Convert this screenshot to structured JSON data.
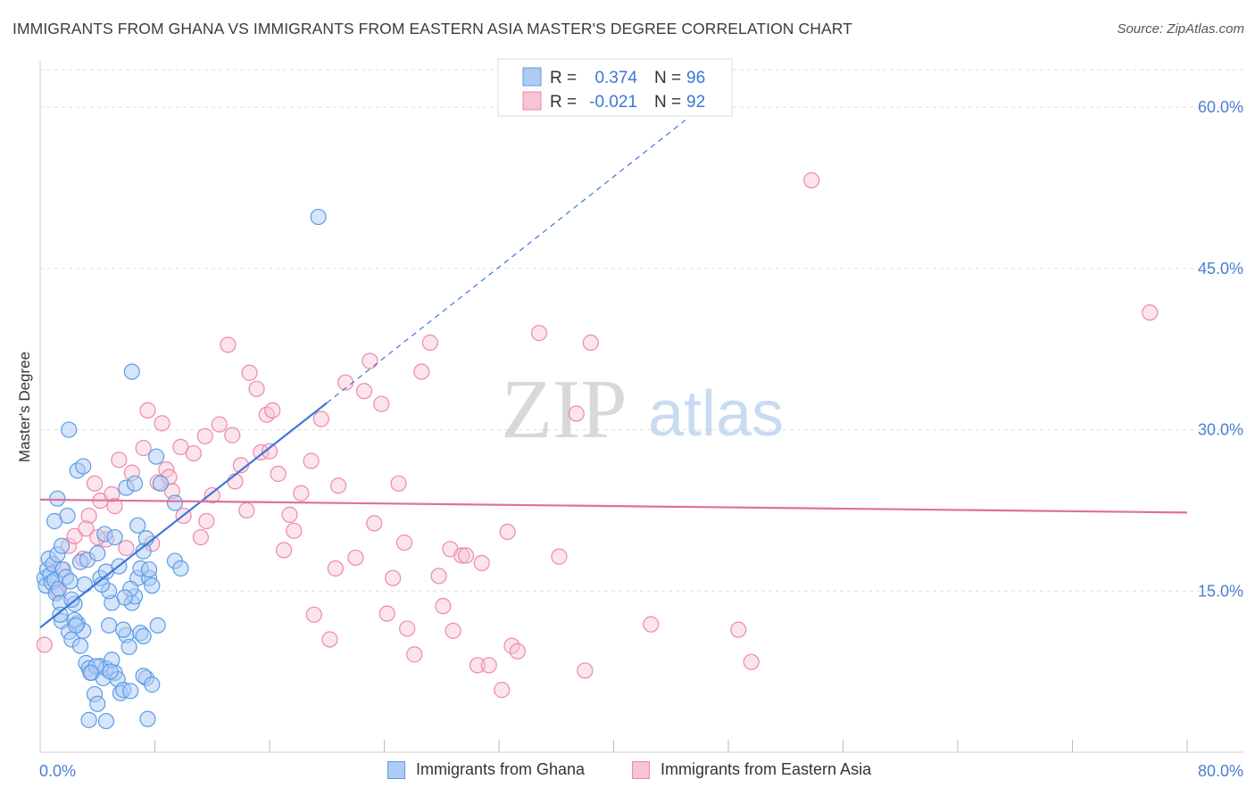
{
  "title": "IMMIGRANTS FROM GHANA VS IMMIGRANTS FROM EASTERN ASIA MASTER'S DEGREE CORRELATION CHART",
  "source": "Source: ZipAtlas.com",
  "watermark": {
    "zip": "ZIP",
    "atlas": "atlas"
  },
  "colors": {
    "blue": "#5b9ce6",
    "blue_fill": "#aecbf3",
    "blue_line": "#3b78d8",
    "pink": "#ee89a9",
    "pink_fill": "#f6c4d4",
    "pink_line": "#e0709a",
    "axis_text": "#4a7fd0",
    "grid": "#dddddd"
  },
  "legend": {
    "r_label": "R =",
    "n_label": "N =",
    "blue": {
      "r": "0.374",
      "n": "96"
    },
    "pink": {
      "r": "-0.021",
      "n": "92"
    }
  },
  "chart_data": {
    "type": "scatter",
    "ylabel": "Master's Degree",
    "x_axis": {
      "min": 0,
      "max": 80,
      "min_label": "0.0%",
      "max_label": "80.0%"
    },
    "y_axis": {
      "min": 0,
      "max": 63.5,
      "ticks": [
        15,
        30,
        45,
        60
      ],
      "tick_labels": [
        "15.0%",
        "30.0%",
        "45.0%",
        "60.0%"
      ]
    },
    "series": [
      {
        "name": "Immigrants from Ghana",
        "color": "#5b9ce6",
        "trend": {
          "x0": 0,
          "y0": 11.6,
          "x1": 20,
          "y1": 32.5,
          "dash_to_x": 45,
          "dash_to_y": 58.8
        },
        "points": [
          [
            0.3,
            16.2
          ],
          [
            0.4,
            15.5
          ],
          [
            0.5,
            17.0
          ],
          [
            0.6,
            18.0
          ],
          [
            0.7,
            16.5
          ],
          [
            0.8,
            15.8
          ],
          [
            0.9,
            17.5
          ],
          [
            1.0,
            16.0
          ],
          [
            1.1,
            14.8
          ],
          [
            1.2,
            18.4
          ],
          [
            1.3,
            15.2
          ],
          [
            1.4,
            13.9
          ],
          [
            1.5,
            12.2
          ],
          [
            1.6,
            17.0
          ],
          [
            1.8,
            16.3
          ],
          [
            2.0,
            11.2
          ],
          [
            2.2,
            10.5
          ],
          [
            2.4,
            13.8
          ],
          [
            2.6,
            12.0
          ],
          [
            2.8,
            9.9
          ],
          [
            3.0,
            11.3
          ],
          [
            3.2,
            8.3
          ],
          [
            3.4,
            7.8
          ],
          [
            3.6,
            7.4
          ],
          [
            3.8,
            5.4
          ],
          [
            4.0,
            4.5
          ],
          [
            4.2,
            8.0
          ],
          [
            4.4,
            6.9
          ],
          [
            4.6,
            7.8
          ],
          [
            4.8,
            11.8
          ],
          [
            5.0,
            13.9
          ],
          [
            5.2,
            7.4
          ],
          [
            5.4,
            6.8
          ],
          [
            5.6,
            5.5
          ],
          [
            5.8,
            5.8
          ],
          [
            6.0,
            10.9
          ],
          [
            6.2,
            9.8
          ],
          [
            6.4,
            13.9
          ],
          [
            6.6,
            14.5
          ],
          [
            6.8,
            16.2
          ],
          [
            7.0,
            11.1
          ],
          [
            7.2,
            10.8
          ],
          [
            7.4,
            6.9
          ],
          [
            7.6,
            16.2
          ],
          [
            7.8,
            15.5
          ],
          [
            1.0,
            21.5
          ],
          [
            1.2,
            23.6
          ],
          [
            2.0,
            30.0
          ],
          [
            2.6,
            26.2
          ],
          [
            3.0,
            26.6
          ],
          [
            4.2,
            16.2
          ],
          [
            4.5,
            20.3
          ],
          [
            5.2,
            20.0
          ],
          [
            5.5,
            17.3
          ],
          [
            4.8,
            15.0
          ],
          [
            6.0,
            24.6
          ],
          [
            6.8,
            21.1
          ],
          [
            7.4,
            19.9
          ],
          [
            7.0,
            17.1
          ],
          [
            4.3,
            15.6
          ],
          [
            2.2,
            14.2
          ],
          [
            2.4,
            12.3
          ],
          [
            1.4,
            12.8
          ],
          [
            1.5,
            19.2
          ],
          [
            1.9,
            22.0
          ],
          [
            2.8,
            17.7
          ],
          [
            3.3,
            17.9
          ],
          [
            4.0,
            18.5
          ],
          [
            4.6,
            16.8
          ],
          [
            5.0,
            8.6
          ],
          [
            6.4,
            35.4
          ],
          [
            5.8,
            11.4
          ],
          [
            6.6,
            25.0
          ],
          [
            9.4,
            17.8
          ],
          [
            7.5,
            3.1
          ],
          [
            6.3,
            5.7
          ],
          [
            7.2,
            7.1
          ],
          [
            4.6,
            2.9
          ],
          [
            3.4,
            3.0
          ],
          [
            7.8,
            6.3
          ],
          [
            9.8,
            17.1
          ],
          [
            7.6,
            17.0
          ],
          [
            7.2,
            18.7
          ],
          [
            6.3,
            15.2
          ],
          [
            5.9,
            14.4
          ],
          [
            3.1,
            15.6
          ],
          [
            2.1,
            15.9
          ],
          [
            2.5,
            11.8
          ],
          [
            3.9,
            8.0
          ],
          [
            3.5,
            7.4
          ],
          [
            4.9,
            7.5
          ],
          [
            8.2,
            11.8
          ],
          [
            8.4,
            25.0
          ],
          [
            9.4,
            23.2
          ],
          [
            8.1,
            27.5
          ],
          [
            19.4,
            49.8
          ]
        ]
      },
      {
        "name": "Immigrants from Eastern Asia",
        "color": "#ee89a9",
        "trend": {
          "x0": 0,
          "y0": 23.5,
          "x1": 80,
          "y1": 22.3
        },
        "points": [
          [
            0.3,
            10.0
          ],
          [
            1.2,
            15.0
          ],
          [
            1.5,
            17.0
          ],
          [
            2.0,
            19.2
          ],
          [
            2.4,
            20.1
          ],
          [
            3.0,
            18.0
          ],
          [
            3.4,
            22.0
          ],
          [
            3.8,
            25.0
          ],
          [
            4.2,
            23.4
          ],
          [
            4.6,
            19.8
          ],
          [
            5.0,
            24.0
          ],
          [
            5.5,
            27.2
          ],
          [
            6.0,
            19.0
          ],
          [
            6.4,
            26.0
          ],
          [
            7.2,
            28.3
          ],
          [
            7.5,
            31.8
          ],
          [
            8.2,
            25.1
          ],
          [
            8.8,
            26.3
          ],
          [
            8.5,
            30.6
          ],
          [
            9.2,
            24.3
          ],
          [
            9.8,
            28.4
          ],
          [
            10.0,
            22.0
          ],
          [
            10.7,
            27.8
          ],
          [
            11.2,
            20.0
          ],
          [
            11.6,
            21.5
          ],
          [
            11.5,
            29.4
          ],
          [
            12.5,
            30.5
          ],
          [
            13.1,
            37.9
          ],
          [
            13.4,
            29.5
          ],
          [
            13.6,
            25.2
          ],
          [
            14.0,
            26.7
          ],
          [
            14.6,
            35.3
          ],
          [
            15.1,
            33.8
          ],
          [
            15.4,
            27.9
          ],
          [
            15.8,
            31.4
          ],
          [
            16.2,
            31.8
          ],
          [
            16.6,
            25.9
          ],
          [
            17.0,
            18.8
          ],
          [
            17.4,
            22.1
          ],
          [
            17.7,
            20.6
          ],
          [
            18.2,
            24.1
          ],
          [
            18.9,
            27.1
          ],
          [
            19.1,
            12.8
          ],
          [
            19.6,
            31.0
          ],
          [
            20.2,
            10.5
          ],
          [
            20.6,
            17.1
          ],
          [
            20.8,
            24.8
          ],
          [
            21.3,
            34.4
          ],
          [
            22.0,
            18.1
          ],
          [
            22.6,
            33.6
          ],
          [
            23.0,
            36.4
          ],
          [
            23.3,
            21.3
          ],
          [
            23.8,
            32.4
          ],
          [
            24.2,
            12.9
          ],
          [
            24.6,
            16.2
          ],
          [
            25.0,
            25.0
          ],
          [
            25.4,
            19.5
          ],
          [
            25.6,
            11.5
          ],
          [
            26.1,
            9.1
          ],
          [
            26.6,
            35.4
          ],
          [
            27.2,
            38.1
          ],
          [
            27.8,
            16.4
          ],
          [
            28.1,
            13.6
          ],
          [
            28.6,
            18.9
          ],
          [
            28.8,
            11.3
          ],
          [
            29.4,
            18.3
          ],
          [
            29.7,
            18.3
          ],
          [
            30.5,
            8.1
          ],
          [
            30.8,
            17.6
          ],
          [
            31.3,
            8.1
          ],
          [
            32.2,
            5.8
          ],
          [
            32.6,
            20.5
          ],
          [
            32.9,
            9.9
          ],
          [
            33.3,
            9.4
          ],
          [
            34.8,
            39.0
          ],
          [
            36.2,
            18.2
          ],
          [
            37.4,
            31.5
          ],
          [
            38.0,
            7.6
          ],
          [
            38.4,
            38.1
          ],
          [
            42.6,
            11.9
          ],
          [
            48.7,
            11.4
          ],
          [
            49.6,
            8.4
          ],
          [
            53.8,
            53.2
          ],
          [
            77.4,
            40.9
          ],
          [
            3.2,
            20.8
          ],
          [
            4.0,
            20.0
          ],
          [
            5.2,
            22.9
          ],
          [
            7.8,
            19.4
          ],
          [
            9.0,
            25.6
          ],
          [
            12.0,
            23.9
          ],
          [
            14.4,
            22.5
          ],
          [
            16.0,
            28.0
          ]
        ]
      }
    ]
  }
}
